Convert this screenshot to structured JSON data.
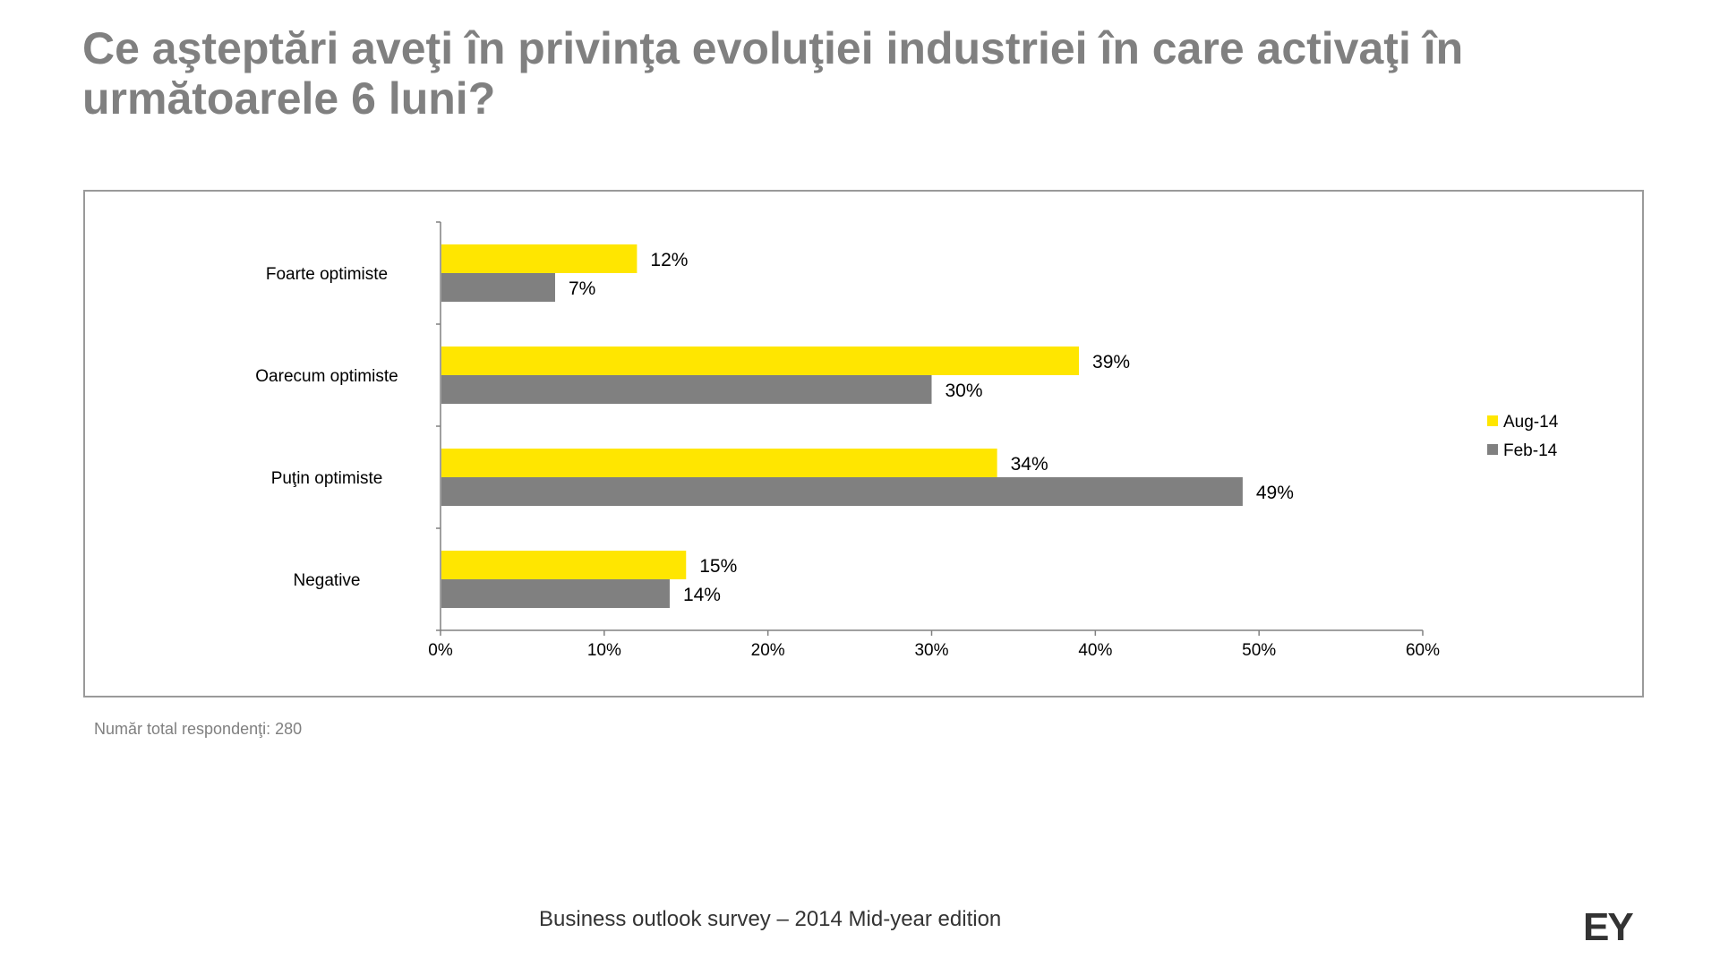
{
  "title": "Ce aşteptări aveţi în privinţa evoluţiei industriei în care activaţi în următoarele 6 luni?",
  "note": "Număr total respondenţi: 280",
  "footer": "Business outlook survey – 2014 Mid-year edition",
  "logo": "EY",
  "colors": {
    "aug": "#FFE600",
    "feb": "#808080",
    "title": "#808080"
  },
  "chart_data": {
    "type": "bar",
    "orientation": "horizontal",
    "categories": [
      "Foarte optimiste",
      "Oarecum optimiste",
      "Puţin optimiste",
      "Negative"
    ],
    "series": [
      {
        "name": "Aug-14",
        "values": [
          12,
          39,
          34,
          15
        ],
        "labels": [
          "12%",
          "39%",
          "34%",
          "15%"
        ]
      },
      {
        "name": "Feb-14",
        "values": [
          7,
          30,
          49,
          14
        ],
        "labels": [
          "7%",
          "30%",
          "49%",
          "14%"
        ]
      }
    ],
    "xlim": [
      0,
      60
    ],
    "xticks": [
      "0%",
      "10%",
      "20%",
      "30%",
      "40%",
      "50%",
      "60%"
    ],
    "grid": false,
    "legend": "right"
  }
}
